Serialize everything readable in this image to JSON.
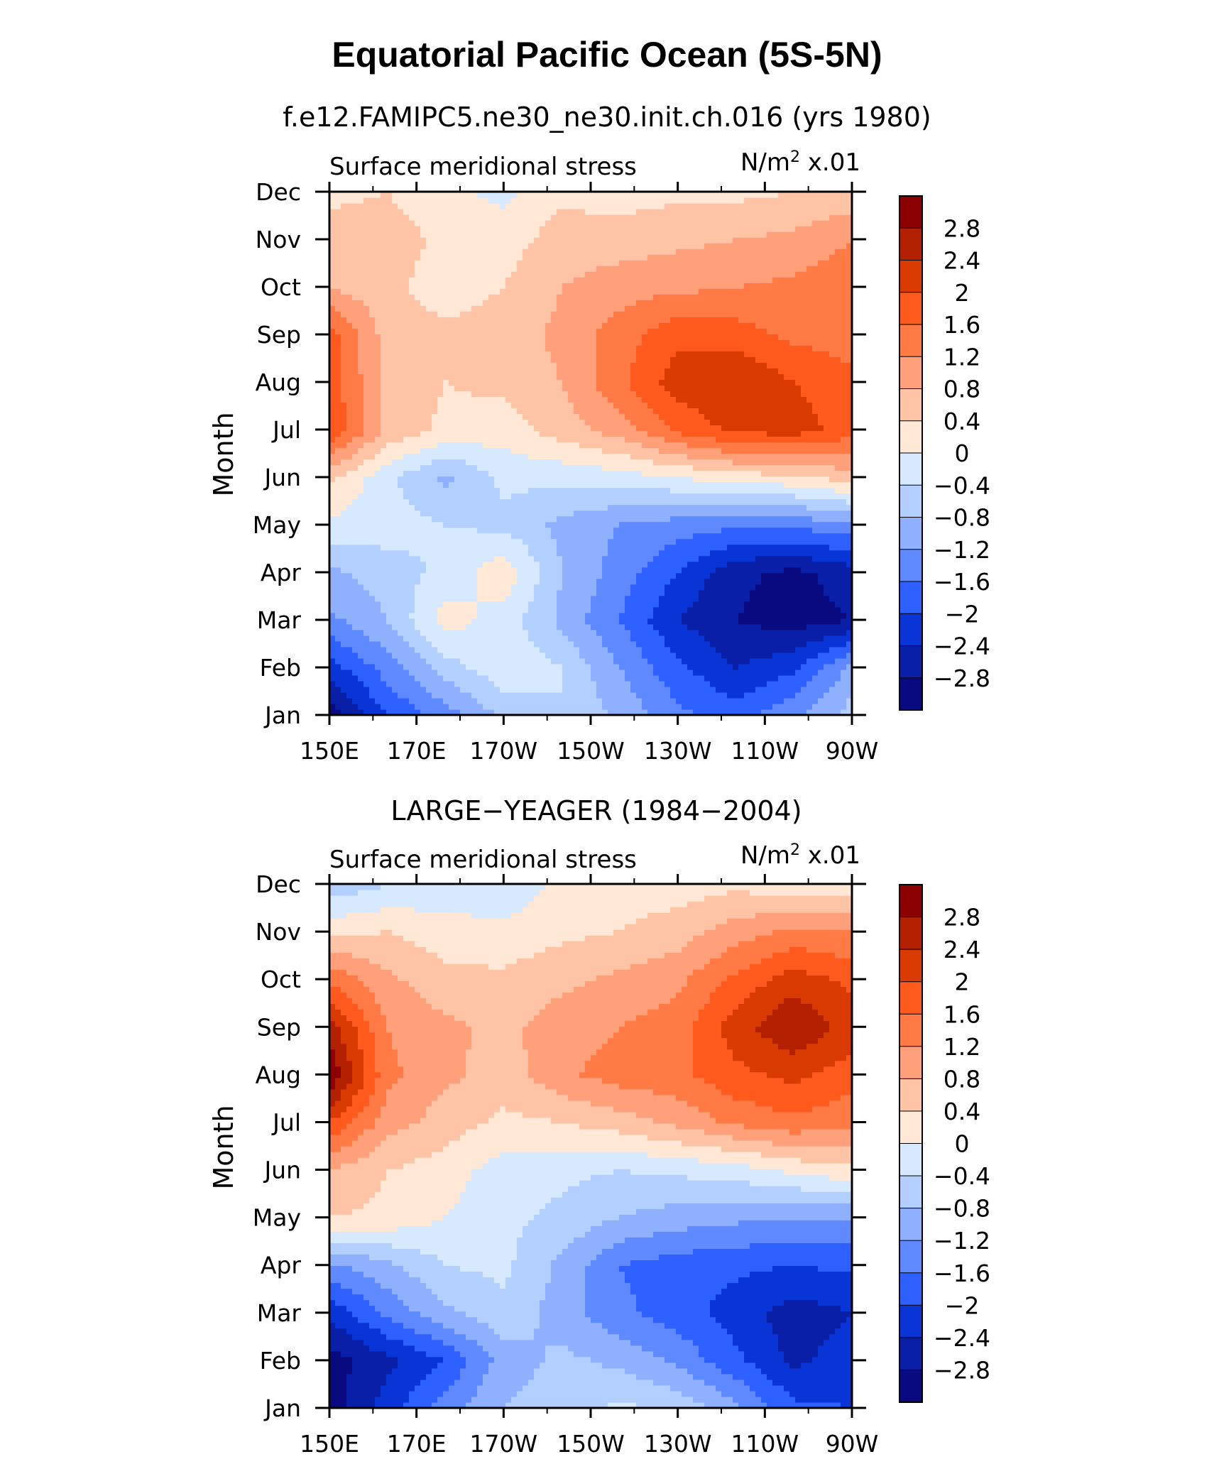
{
  "main_title": "Equatorial Pacific Ocean (5S-5N)",
  "colorbar": {
    "levels": [
      "2.8",
      "2.4",
      "2",
      "1.6",
      "1.2",
      "0.8",
      "0.4",
      "0",
      "-0.4",
      "-0.8",
      "-1.2",
      "-1.6",
      "-2",
      "-2.4",
      "-2.8"
    ],
    "level_display": [
      "2.8",
      "2.4",
      "2",
      "1.6",
      "1.2",
      "0.8",
      "0.4",
      "0",
      "−0.4",
      "−0.8",
      "−1.2",
      "−1.6",
      "−2",
      "−2.4",
      "−2.8"
    ],
    "colors": [
      "#8b0000",
      "#b32000",
      "#d93a00",
      "#ff5a1e",
      "#ff7a45",
      "#ffa07a",
      "#ffc4a6",
      "#ffe8d6",
      "#d6e9ff",
      "#b3cfff",
      "#8fb0ff",
      "#5f8aff",
      "#2e5fff",
      "#0a35d6",
      "#0a1fa8",
      "#0a0a80"
    ]
  },
  "chart_data": [
    {
      "type": "heatmap",
      "subtitle": "f.e12.FAMIPC5.ne30_ne30.init.ch.016 (yrs 1980)",
      "left_title": "Surface meridional stress",
      "units_base": "N/m",
      "units_exp": "2",
      "units_scale": " x.01",
      "ylabel": "Month",
      "x": [
        "150E",
        "170E",
        "170W",
        "150W",
        "130W",
        "110W",
        "90W"
      ],
      "y": [
        "Jan",
        "Feb",
        "Mar",
        "Apr",
        "May",
        "Jun",
        "Jul",
        "Aug",
        "Sep",
        "Oct",
        "Nov",
        "Dec"
      ],
      "z": [
        [
          -3.0,
          -2.0,
          -1.4,
          -0.7,
          -0.4,
          -0.9,
          -1.5,
          -1.8,
          -1.3,
          -0.6
        ],
        [
          -2.2,
          -1.4,
          -0.6,
          -0.1,
          -0.4,
          -1.2,
          -1.9,
          -2.4,
          -2.1,
          -1.1
        ],
        [
          -1.3,
          -0.8,
          0.2,
          -0.2,
          -0.9,
          -1.6,
          -2.4,
          -2.8,
          -3.0,
          -2.8
        ],
        [
          -0.9,
          -0.6,
          -0.3,
          0.3,
          -0.8,
          -1.4,
          -2.0,
          -2.7,
          -2.9,
          -2.6
        ],
        [
          -0.1,
          -0.2,
          -0.4,
          -0.5,
          -0.9,
          -1.2,
          -1.4,
          -1.5,
          -1.5,
          -1.3
        ],
        [
          0.5,
          -0.3,
          -0.9,
          -0.3,
          -0.3,
          -0.2,
          0.0,
          0.2,
          0.3,
          0.6
        ],
        [
          2.0,
          0.7,
          0.3,
          0.2,
          0.6,
          1.0,
          1.7,
          2.1,
          2.2,
          1.8
        ],
        [
          1.8,
          0.7,
          0.4,
          0.5,
          0.8,
          1.5,
          2.2,
          2.4,
          2.0,
          1.7
        ],
        [
          1.8,
          0.6,
          0.5,
          0.6,
          0.9,
          1.4,
          1.9,
          1.8,
          1.5,
          1.4
        ],
        [
          0.8,
          0.5,
          0.2,
          0.4,
          0.8,
          1.0,
          1.1,
          1.2,
          1.3,
          1.5
        ],
        [
          0.6,
          0.6,
          0.3,
          0.2,
          0.6,
          0.6,
          0.7,
          0.8,
          0.9,
          1.2
        ],
        [
          0.3,
          0.4,
          0.1,
          -0.1,
          0.3,
          0.2,
          0.3,
          0.3,
          0.4,
          0.5
        ]
      ],
      "zlim": [
        -3.2,
        3.2
      ]
    },
    {
      "type": "heatmap",
      "subtitle": "LARGE-YEAGER (1984-2004)",
      "subtitle_display": "LARGE−YEAGER (1984−2004)",
      "left_title": "Surface meridional stress",
      "units_base": "N/m",
      "units_exp": "2",
      "units_scale": " x.01",
      "ylabel": "Month",
      "x": [
        "150E",
        "170E",
        "170W",
        "150W",
        "130W",
        "110W",
        "90W"
      ],
      "y": [
        "Jan",
        "Feb",
        "Mar",
        "Apr",
        "May",
        "Jun",
        "Jul",
        "Aug",
        "Sep",
        "Oct",
        "Nov",
        "Dec"
      ],
      "z": [
        [
          -3.0,
          -2.2,
          -1.4,
          -0.8,
          -0.6,
          -0.3,
          -0.5,
          -1.1,
          -1.9,
          -2.0
        ],
        [
          -3.0,
          -2.5,
          -2.0,
          -1.0,
          -0.7,
          -0.9,
          -1.3,
          -1.9,
          -2.5,
          -2.2
        ],
        [
          -2.3,
          -1.5,
          -0.9,
          -0.5,
          -1.0,
          -1.5,
          -1.8,
          -2.2,
          -2.6,
          -2.4
        ],
        [
          -1.3,
          -0.9,
          -0.4,
          -0.3,
          -0.9,
          -1.6,
          -1.8,
          -1.9,
          -2.0,
          -1.9
        ],
        [
          0.4,
          0.3,
          0.0,
          -0.3,
          -0.5,
          -0.8,
          -1.0,
          -1.1,
          -1.2,
          -1.2
        ],
        [
          0.8,
          0.4,
          0.2,
          -0.2,
          -0.3,
          -0.4,
          -0.3,
          -0.2,
          0.1,
          0.3
        ],
        [
          2.0,
          1.0,
          0.6,
          0.3,
          0.4,
          0.6,
          0.9,
          1.3,
          1.5,
          1.3
        ],
        [
          3.2,
          1.3,
          0.9,
          0.6,
          1.1,
          1.4,
          1.5,
          1.9,
          2.1,
          1.8
        ],
        [
          2.6,
          1.2,
          0.9,
          0.7,
          1.0,
          1.2,
          1.4,
          2.2,
          2.8,
          2.2
        ],
        [
          1.5,
          0.9,
          0.5,
          0.5,
          0.7,
          0.9,
          1.1,
          1.7,
          2.2,
          1.9
        ],
        [
          0.3,
          0.4,
          0.2,
          0.1,
          0.3,
          0.4,
          0.6,
          1.0,
          1.3,
          1.2
        ],
        [
          -0.7,
          -0.4,
          -0.3,
          -0.3,
          0.1,
          0.2,
          0.2,
          0.3,
          0.1,
          0.2
        ]
      ],
      "zlim": [
        -3.2,
        3.2
      ]
    }
  ]
}
